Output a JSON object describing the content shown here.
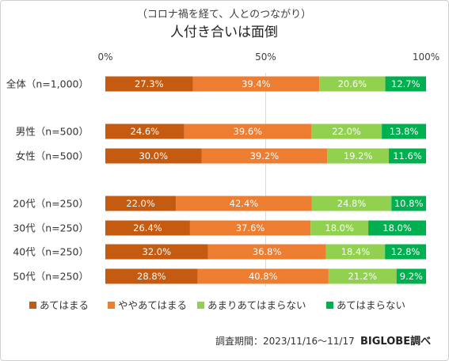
{
  "chart_data": {
    "type": "bar",
    "orientation": "horizontal-stacked-100",
    "subtitle": "（コロナ禍を経て、人とのつながり）",
    "title": "人付き合いは面倒",
    "x_ticks": [
      "0%",
      "50%",
      "100%"
    ],
    "xlim": [
      0,
      100
    ],
    "legend_position": "bottom",
    "series": [
      {
        "name": "あてはまる",
        "color": "#C55A11"
      },
      {
        "name": "ややあてはまる",
        "color": "#ED7D31"
      },
      {
        "name": "あまりあてはまらない",
        "color": "#92D050"
      },
      {
        "name": "あてはまらない",
        "color": "#00B050"
      }
    ],
    "rows": [
      {
        "label": "全体（n=1,000）",
        "values": [
          27.3,
          39.4,
          20.6,
          12.7
        ],
        "labels": [
          "27.3%",
          "39.4%",
          "20.6%",
          "12.7%"
        ]
      },
      {
        "label": "男性（n=500）",
        "values": [
          24.6,
          39.6,
          22.0,
          13.8
        ],
        "labels": [
          "24.6%",
          "39.6%",
          "22.0%",
          "13.8%"
        ]
      },
      {
        "label": "女性（n=500）",
        "values": [
          30.0,
          39.2,
          19.2,
          11.6
        ],
        "labels": [
          "30.0%",
          "39.2%",
          "19.2%",
          "11.6%"
        ]
      },
      {
        "label": "20代（n=250）",
        "values": [
          22.0,
          42.4,
          24.8,
          10.8
        ],
        "labels": [
          "22.0%",
          "42.4%",
          "24.8%",
          "10.8%"
        ]
      },
      {
        "label": "30代（n=250）",
        "values": [
          26.4,
          37.6,
          18.0,
          18.0
        ],
        "labels": [
          "26.4%",
          "37.6%",
          "18.0%",
          "18.0%"
        ]
      },
      {
        "label": "40代（n=250）",
        "values": [
          32.0,
          36.8,
          18.4,
          12.8
        ],
        "labels": [
          "32.0%",
          "36.8%",
          "18.4%",
          "12.8%"
        ]
      },
      {
        "label": "50代（n=250）",
        "values": [
          28.8,
          40.8,
          21.2,
          9.2
        ],
        "labels": [
          "28.8%",
          "40.8%",
          "21.2%",
          "9.2%"
        ]
      }
    ]
  },
  "footer": {
    "note": "調査期間：2023/11/16～11/17",
    "brand": "BIGLOBE調べ"
  }
}
